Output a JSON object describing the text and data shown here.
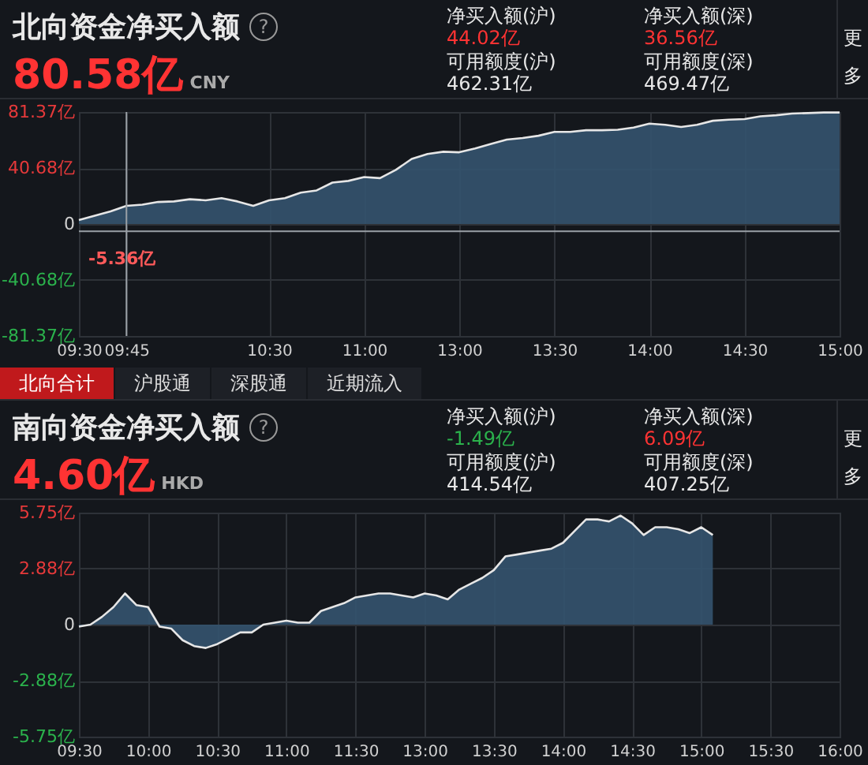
{
  "chart_data": [
    {
      "type": "area",
      "title": "北向资金净买入额",
      "annotations": [
        "80.58亿",
        "CNY",
        "?",
        "净买入额(沪)",
        "44.02亿",
        "净买入额(深)",
        "36.56亿",
        "可用额度(沪)",
        "462.31亿",
        "可用额度(深)",
        "469.47亿",
        "更多",
        "北向合计",
        "沪股通",
        "深股通",
        "近期流入"
      ],
      "categories": [
        "09:30",
        null,
        null,
        "09:45",
        null,
        null,
        null,
        null,
        null,
        null,
        null,
        null,
        "10:30",
        null,
        null,
        null,
        null,
        null,
        "11:00",
        null,
        null,
        null,
        null,
        null,
        "13:00",
        null,
        null,
        null,
        null,
        null,
        "13:30",
        null,
        null,
        null,
        null,
        null,
        "14:00",
        null,
        null,
        null,
        null,
        null,
        "14:30",
        null,
        null,
        null,
        null,
        null,
        "15:00"
      ],
      "values": [
        2.8,
        6.0,
        9.2,
        13.2,
        14.0,
        16.0,
        16.4,
        18.0,
        17.2,
        18.8,
        16.4,
        13.2,
        17.2,
        18.8,
        22.8,
        24.4,
        30.1,
        31.3,
        34.1,
        33.3,
        39.3,
        47.3,
        50.9,
        52.5,
        52.1,
        54.9,
        58.1,
        61.3,
        62.5,
        64.1,
        66.9,
        66.9,
        68.1,
        68.1,
        68.5,
        70.1,
        72.9,
        72.1,
        70.5,
        72.1,
        75.0,
        75.8,
        76.2,
        78.2,
        79.0,
        80.2,
        80.6,
        81.0,
        81.0
      ],
      "color": "#34536f",
      "ylim": [
        -81.37,
        81.37
      ],
      "yticks": [
        {
          "value": 81.37,
          "label": "81.37亿"
        },
        {
          "value": 40.68,
          "label": "40.68亿"
        },
        0,
        {
          "value": -40.68,
          "label": "-40.68亿"
        },
        {
          "value": -81.37,
          "label": "-81.37亿"
        }
      ],
      "grid": true,
      "ref_lines": [
        {
          "axis": "x",
          "value": "09:45"
        },
        {
          "axis": "y",
          "value": -5.36,
          "label": "-5.36亿"
        }
      ]
    },
    {
      "type": "area",
      "title": "南向资金净买入额",
      "annotations": [
        "4.60亿",
        "HKD",
        "?",
        "净买入额(沪)",
        "-1.49亿",
        "净买入额(深)",
        "6.09亿",
        "可用额度(沪)",
        "414.54亿",
        "可用额度(深)",
        "407.25亿",
        "更多"
      ],
      "categories": [
        "09:30",
        null,
        null,
        null,
        null,
        null,
        "10:00",
        null,
        null,
        null,
        null,
        null,
        "10:30",
        null,
        null,
        null,
        null,
        null,
        "11:00",
        null,
        null,
        null,
        null,
        null,
        "11:30",
        null,
        null,
        null,
        null,
        null,
        "13:00",
        null,
        null,
        null,
        null,
        null,
        "13:30",
        null,
        null,
        null,
        null,
        null,
        "14:00",
        null,
        null,
        null,
        null,
        null,
        "14:30",
        null,
        null,
        null,
        null,
        null,
        "15:00",
        null,
        null,
        null,
        null,
        null,
        "15:30",
        null,
        null,
        null,
        null,
        null,
        "16:00"
      ],
      "values": [
        -0.1,
        0.0,
        0.4,
        0.9,
        1.6,
        1.0,
        0.9,
        -0.1,
        -0.2,
        -0.8,
        -1.1,
        -1.2,
        -1.0,
        -0.7,
        -0.4,
        -0.4,
        0.0,
        0.1,
        0.2,
        0.1,
        0.1,
        0.7,
        0.9,
        1.1,
        1.4,
        1.5,
        1.6,
        1.6,
        1.5,
        1.4,
        1.6,
        1.5,
        1.3,
        1.8,
        2.1,
        2.4,
        2.8,
        3.5,
        3.6,
        3.7,
        3.8,
        3.9,
        4.2,
        4.8,
        5.4,
        5.4,
        5.3,
        5.6,
        5.2,
        4.6,
        5.0,
        5.0,
        4.9,
        4.7,
        5.0,
        4.6,
        null,
        null,
        null,
        null,
        null,
        null,
        null,
        null,
        null,
        null,
        null
      ],
      "color": "#34536f",
      "ylim": [
        -5.75,
        5.75
      ],
      "yticks": [
        {
          "value": 5.75,
          "label": "5.75亿"
        },
        {
          "value": 2.88,
          "label": "2.88亿"
        },
        0,
        {
          "value": -2.88,
          "label": "-2.88亿"
        },
        {
          "value": -5.75,
          "label": "-5.75亿"
        }
      ],
      "grid": true
    }
  ]
}
